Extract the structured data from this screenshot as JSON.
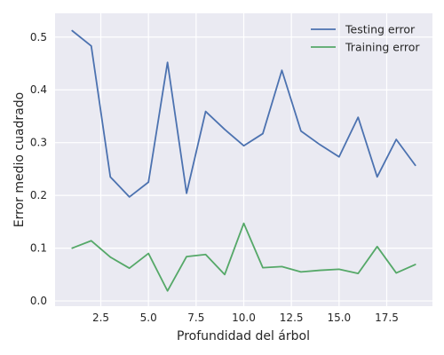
{
  "chart_data": {
    "type": "line",
    "title": "",
    "xlabel": "Profundidad del árbol",
    "ylabel": "Error medio cuadrado",
    "x": [
      1,
      2,
      3,
      4,
      5,
      6,
      7,
      8,
      9,
      10,
      11,
      12,
      13,
      14,
      15,
      16,
      17,
      18,
      19
    ],
    "xlim": [
      0.1,
      19.9
    ],
    "ylim": [
      -0.01,
      0.545
    ],
    "xticks": [
      2.5,
      5.0,
      7.5,
      10.0,
      12.5,
      15.0,
      17.5
    ],
    "xtick_labels": [
      "2.5",
      "5.0",
      "7.5",
      "10.0",
      "12.5",
      "15.0",
      "17.5"
    ],
    "yticks": [
      0.0,
      0.1,
      0.2,
      0.3,
      0.4,
      0.5
    ],
    "ytick_labels": [
      "0.0",
      "0.1",
      "0.2",
      "0.3",
      "0.4",
      "0.5"
    ],
    "grid": true,
    "background": "#eaeaf2",
    "legend_position": "top-right",
    "series": [
      {
        "name": "Testing error",
        "color": "#4c72b0",
        "values": [
          0.512,
          0.483,
          0.235,
          0.197,
          0.225,
          0.452,
          0.204,
          0.359,
          0.325,
          0.294,
          0.317,
          0.437,
          0.322,
          0.296,
          0.273,
          0.348,
          0.235,
          0.306,
          0.257
        ]
      },
      {
        "name": "Training error",
        "color": "#55a868",
        "values": [
          0.1,
          0.114,
          0.083,
          0.062,
          0.09,
          0.019,
          0.084,
          0.088,
          0.05,
          0.147,
          0.063,
          0.065,
          0.055,
          0.058,
          0.06,
          0.052,
          0.103,
          0.053,
          0.069
        ]
      }
    ]
  }
}
